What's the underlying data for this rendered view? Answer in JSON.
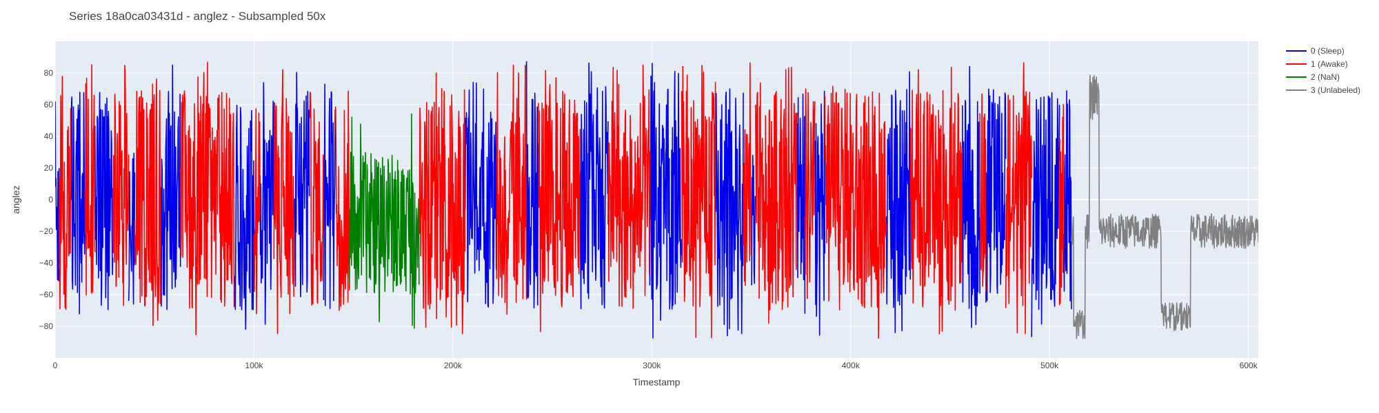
{
  "chart_data": {
    "type": "line",
    "title": "Series 18a0ca03431d - anglez - Subsampled 50x",
    "xlabel": "Timestamp",
    "ylabel": "anglez",
    "xlim": [
      0,
      605000
    ],
    "ylim": [
      -100,
      100
    ],
    "x_ticks": [
      0,
      100000,
      200000,
      300000,
      400000,
      500000,
      600000
    ],
    "x_tick_labels": [
      "0",
      "100k",
      "200k",
      "300k",
      "400k",
      "500k",
      "600k"
    ],
    "y_ticks": [
      -80,
      -60,
      -40,
      -20,
      0,
      20,
      40,
      60,
      80
    ],
    "y_tick_labels": [
      "−80",
      "−60",
      "−40",
      "−20",
      "0",
      "20",
      "40",
      "60",
      "80"
    ],
    "grid": true,
    "legend_position": "top-right",
    "background": "#e5ecf6",
    "series": [
      {
        "name": "0 (Sleep)",
        "color": "#0000ee",
        "segments": [
          [
            0,
            2000
          ],
          [
            8000,
            15000
          ],
          [
            20000,
            29000
          ],
          [
            37000,
            40000
          ],
          [
            53000,
            63000
          ],
          [
            90000,
            100000
          ],
          [
            103000,
            110000
          ],
          [
            120000,
            128000
          ],
          [
            135000,
            141000
          ],
          [
            206000,
            222000
          ],
          [
            237000,
            243000
          ],
          [
            264000,
            278000
          ],
          [
            299000,
            315000
          ],
          [
            332000,
            346000
          ],
          [
            350000,
            352000
          ],
          [
            373000,
            377000
          ],
          [
            382000,
            387000
          ],
          [
            418000,
            430000
          ],
          [
            456000,
            465000
          ],
          [
            468000,
            478000
          ],
          [
            491000,
            505000
          ],
          [
            507000,
            511000
          ]
        ]
      },
      {
        "name": "1 (Awake)",
        "color": "#ff0000",
        "segments": [
          [
            2000,
            8000
          ],
          [
            15000,
            20000
          ],
          [
            29000,
            37000
          ],
          [
            40000,
            53000
          ],
          [
            63000,
            90000
          ],
          [
            100000,
            103000
          ],
          [
            110000,
            120000
          ],
          [
            128000,
            135000
          ],
          [
            141000,
            148000
          ],
          [
            183000,
            206000
          ],
          [
            222000,
            237000
          ],
          [
            243000,
            264000
          ],
          [
            278000,
            299000
          ],
          [
            315000,
            332000
          ],
          [
            346000,
            350000
          ],
          [
            352000,
            373000
          ],
          [
            377000,
            382000
          ],
          [
            387000,
            418000
          ],
          [
            430000,
            456000
          ],
          [
            465000,
            468000
          ],
          [
            478000,
            491000
          ],
          [
            505000,
            507000
          ]
        ]
      },
      {
        "name": "2 (NaN)",
        "color": "#008000",
        "segments": [
          [
            148000,
            183000
          ]
        ]
      },
      {
        "name": "3 (Unlabeled)",
        "color": "#808080",
        "segments": [
          [
            511000,
            605000
          ]
        ]
      }
    ]
  }
}
